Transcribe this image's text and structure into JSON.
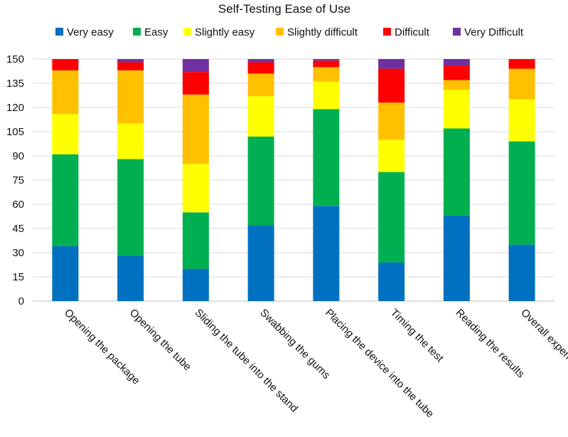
{
  "chart_data": {
    "type": "bar",
    "stacked": true,
    "title": "Self-Testing Ease of Use",
    "xlabel": "",
    "ylabel": "",
    "ylim": [
      0,
      150
    ],
    "yticks": [
      0,
      15,
      30,
      45,
      60,
      75,
      90,
      105,
      120,
      135,
      150
    ],
    "grid": true,
    "legend_position": "top",
    "categories": [
      "Opening the package",
      "Opening the tube",
      "Sliding the tube into the stand",
      "Swabbing the gums",
      "Placing the device into the tube",
      "Timing the test",
      "Reading the results",
      "Overall experience"
    ],
    "series": [
      {
        "name": "Very easy",
        "color": "#0070C0",
        "values": [
          34,
          28,
          20,
          47,
          59,
          24,
          53,
          35
        ]
      },
      {
        "name": "Easy",
        "color": "#00B050",
        "values": [
          57,
          60,
          35,
          55,
          60,
          56,
          54,
          64
        ]
      },
      {
        "name": "Slightly easy",
        "color": "#FFFF00",
        "values": [
          25,
          22,
          30,
          25,
          17,
          20,
          24,
          26
        ]
      },
      {
        "name": "Slightly difficult",
        "color": "#FFC000",
        "values": [
          27,
          33,
          43,
          14,
          9,
          23,
          6,
          19
        ]
      },
      {
        "name": "Difficult",
        "color": "#FF0000",
        "values": [
          7,
          5,
          14,
          7,
          4,
          21,
          9,
          6
        ]
      },
      {
        "name": "Very Difficult",
        "color": "#7030A0",
        "values": [
          0,
          2,
          8,
          2,
          1,
          6,
          4,
          0
        ]
      }
    ]
  }
}
